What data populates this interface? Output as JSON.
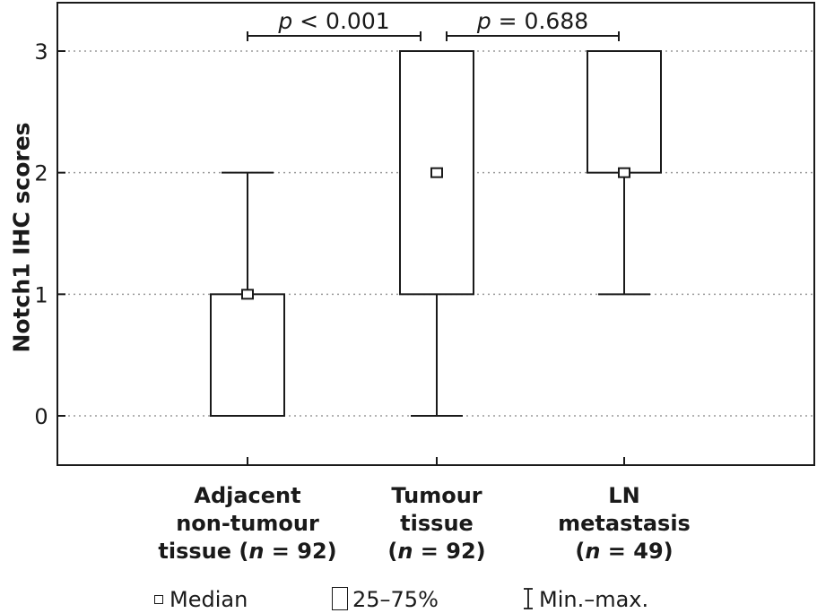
{
  "chart_data": {
    "type": "box",
    "title": "",
    "xlabel": "",
    "ylabel": "Notch1 IHC scores",
    "ylim": [
      -0.4,
      3.4
    ],
    "yticks": [
      0,
      1,
      2,
      3
    ],
    "ytick_labels": [
      "0",
      "1",
      "2",
      "3"
    ],
    "grid": "horizontal-dotted",
    "categories": [
      {
        "line1": "Adjacent",
        "line2": "non-tumour",
        "line3_pre": "tissue (",
        "italic": "n",
        "line3_post": " = 92)"
      },
      {
        "line1": "Tumour",
        "line2": "tissue",
        "line3_pre": "(",
        "italic": "n",
        "line3_post": " = 92)"
      },
      {
        "line1": "LN",
        "line2": "metastasis",
        "line3_pre": "(",
        "italic": "n",
        "line3_post": " = 49)"
      }
    ],
    "boxes": [
      {
        "min": 0,
        "q1": 0,
        "median": 1,
        "q3": 1,
        "max": 2
      },
      {
        "min": 0,
        "q1": 1,
        "median": 2,
        "q3": 3,
        "max": 3
      },
      {
        "min": 1,
        "q1": 2,
        "median": 2,
        "q3": 3,
        "max": 3
      }
    ],
    "annotations": [
      {
        "from": 0,
        "to": 1,
        "italic": "p",
        "text": " < 0.001"
      },
      {
        "from": 1,
        "to": 2,
        "italic": "p",
        "text": " = 0.688"
      }
    ],
    "legend": {
      "median": "Median",
      "box": "25–75%",
      "range": "Min.–max."
    },
    "colors": {
      "ink": "#1a1a1a",
      "box_fill": "#ffffff",
      "grid": "#9a9a9a"
    }
  }
}
